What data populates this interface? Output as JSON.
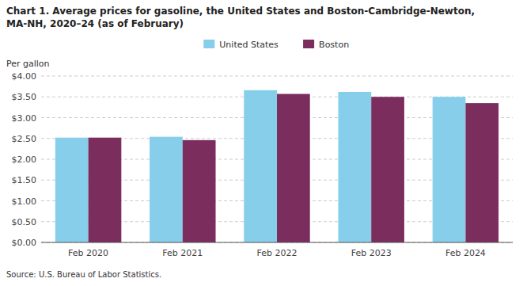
{
  "chart_data": {
    "type": "bar",
    "title": "Chart 1. Average prices for gasoline, the United States and Boston-Cambridge-Newton,\nMA-NH, 2020–24 (as of February)",
    "y_label": "Per gallon",
    "source": "Source: U.S. Bureau of Labor Statistics.",
    "categories": [
      "Feb 2020",
      "Feb 2021",
      "Feb 2022",
      "Feb 2023",
      "Feb 2024"
    ],
    "series": [
      {
        "name": "United States",
        "color": "#87CEEB",
        "values": [
          2.52,
          2.54,
          3.66,
          3.62,
          3.5
        ]
      },
      {
        "name": "Boston",
        "color": "#7B2D5E",
        "values": [
          2.52,
          2.46,
          3.57,
          3.5,
          3.35
        ]
      }
    ],
    "ylim": [
      0,
      4.0
    ],
    "yticks": [
      {
        "value": 0.0,
        "label": "$0.00"
      },
      {
        "value": 0.5,
        "label": "$0.50"
      },
      {
        "value": 1.0,
        "label": "$1.00"
      },
      {
        "value": 1.5,
        "label": "$1.50"
      },
      {
        "value": 2.0,
        "label": "$2.00"
      },
      {
        "value": 2.5,
        "label": "$2.50"
      },
      {
        "value": 3.0,
        "label": "$3.00"
      },
      {
        "value": 3.5,
        "label": "$3.50"
      },
      {
        "value": 4.0,
        "label": "$4.00"
      }
    ],
    "grid": true,
    "legend": "top"
  }
}
